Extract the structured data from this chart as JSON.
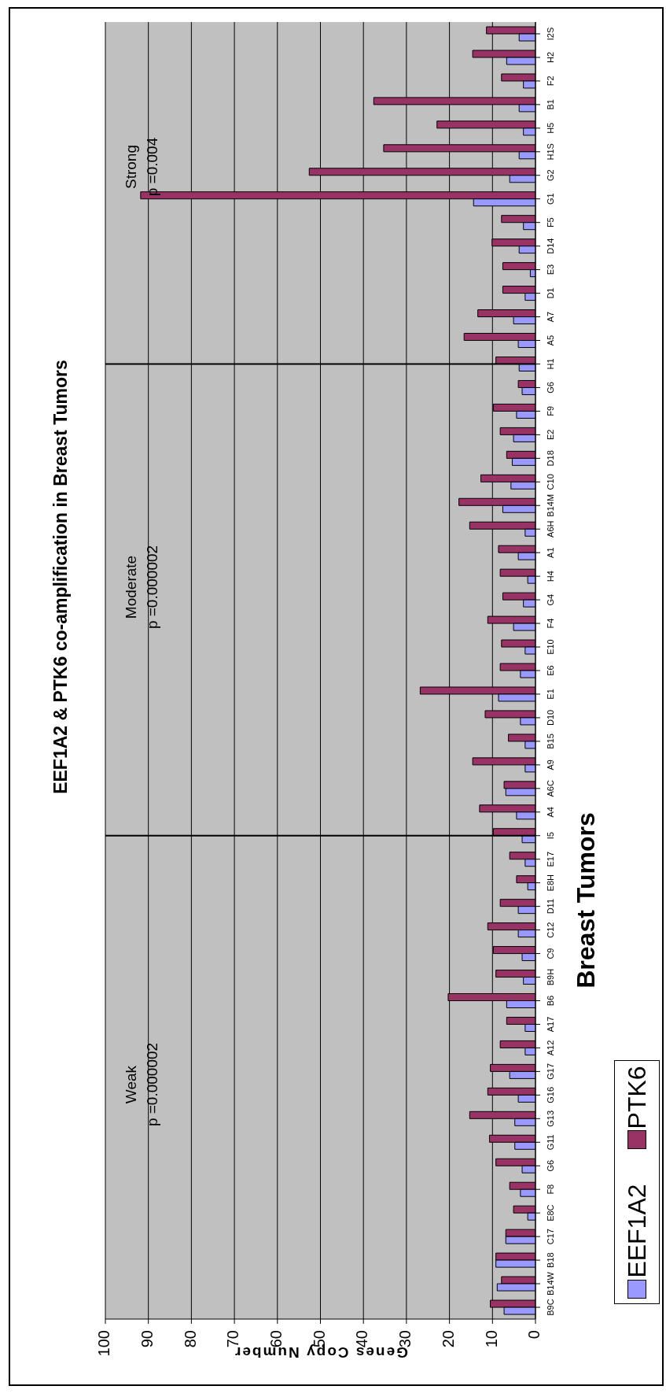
{
  "chart_data": {
    "type": "bar",
    "orientation": "horizontal",
    "title": "EEF1A2 & PTK6 co-amplification in Breast Tumors",
    "xlabel": "Genes Copy Number",
    "ylabel": "Breast Tumors",
    "categories": [
      "I2S",
      "H2",
      "F2",
      "B1",
      "H5",
      "H1S",
      "G2",
      "G1",
      "F5",
      "D14",
      "E3",
      "D1",
      "A7",
      "A5",
      "H1",
      "G6",
      "F9",
      "E2",
      "D18",
      "C10",
      "B14M",
      "A6H",
      "A1",
      "H4",
      "G4",
      "F4",
      "E10",
      "E6",
      "E1",
      "D10",
      "B15",
      "A9",
      "A6C",
      "A4",
      "I5",
      "E17",
      "E8H",
      "D11",
      "C12",
      "C9",
      "B9H",
      "B6",
      "A17",
      "A12",
      "G17",
      "G16",
      "G13",
      "G11",
      "G6",
      "F8",
      "E8C",
      "C17",
      "B18",
      "B14W",
      "B9C"
    ],
    "series": [
      {
        "name": "EEF1A2",
        "color": "#9999ff",
        "values": [
          3.8,
          6.7,
          2.8,
          3.8,
          2.8,
          3.8,
          6.0,
          14.4,
          2.8,
          3.8,
          1.2,
          2.4,
          5.1,
          4.0,
          3.8,
          3.1,
          4.4,
          5.1,
          5.4,
          5.7,
          7.6,
          2.4,
          4.0,
          1.8,
          2.8,
          5.1,
          2.4,
          3.5,
          8.6,
          3.5,
          2.4,
          2.4,
          6.9,
          4.4,
          3.1,
          2.4,
          1.8,
          4.0,
          4.0,
          3.1,
          2.8,
          6.7,
          2.4,
          2.4,
          6.0,
          4.0,
          4.8,
          4.8,
          3.1,
          3.5,
          1.8,
          6.9,
          9.2,
          8.9,
          7.3
        ]
      },
      {
        "name": "PTK6",
        "color": "#993366",
        "values": [
          11.4,
          14.6,
          7.9,
          37.6,
          22.9,
          35.3,
          52.6,
          91.8,
          7.9,
          10.1,
          7.6,
          7.6,
          13.4,
          16.6,
          9.2,
          4.0,
          9.8,
          8.2,
          6.7,
          12.7,
          17.8,
          15.3,
          8.6,
          8.2,
          7.6,
          11.1,
          7.9,
          8.2,
          26.8,
          11.7,
          6.3,
          14.6,
          7.3,
          13.0,
          9.8,
          6.0,
          4.4,
          8.2,
          11.1,
          9.8,
          9.2,
          20.3,
          6.7,
          8.2,
          10.5,
          11.1,
          15.3,
          10.7,
          9.2,
          6.0,
          5.1,
          6.9,
          9.2,
          7.9,
          10.5
        ]
      }
    ],
    "xlim": [
      100,
      0
    ],
    "xticks": [
      0,
      10,
      20,
      30,
      40,
      50,
      60,
      70,
      80,
      90,
      100
    ],
    "grid": "x",
    "legend": "bottom right",
    "ref_lines": [
      {
        "axis": "y",
        "value": "I5",
        "color": "#000000"
      },
      {
        "axis": "y",
        "value": "H1",
        "color": "#000000"
      }
    ],
    "annotations": [
      "Weak",
      "p =0.000002",
      "Moderate",
      "p =0.000002",
      "Strong",
      "p =0.004"
    ]
  }
}
